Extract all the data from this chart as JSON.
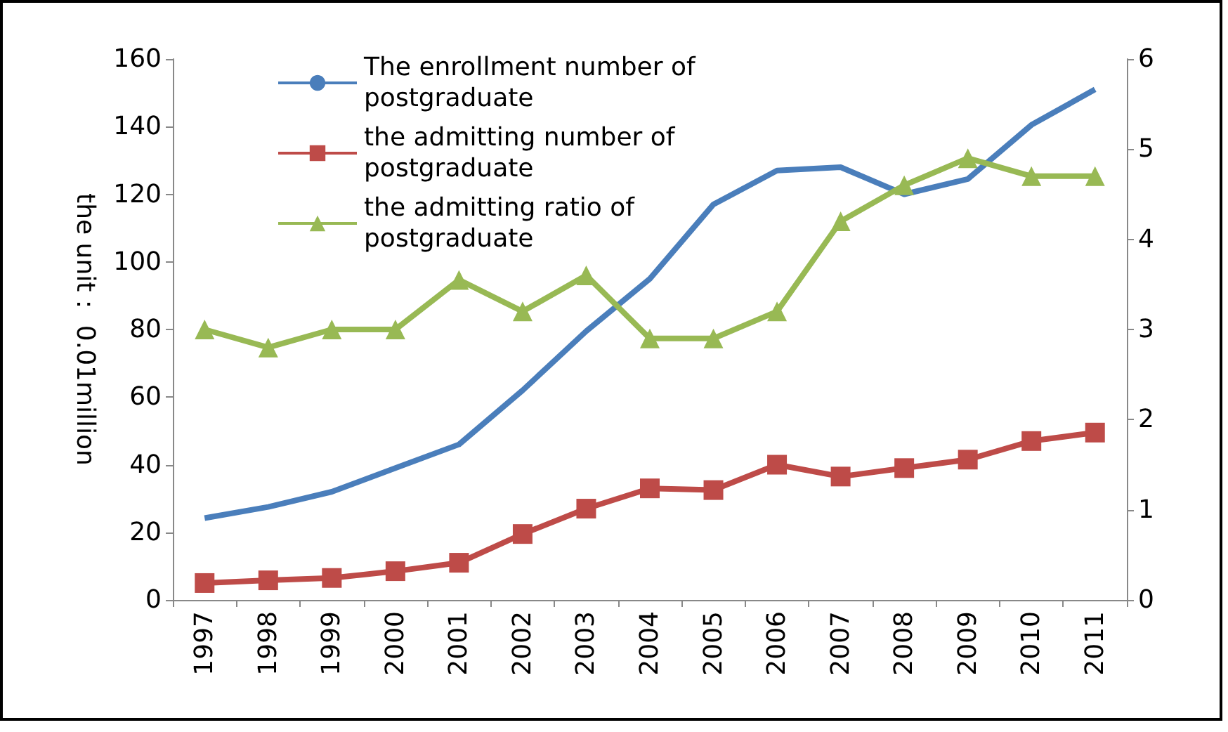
{
  "chart_data": {
    "type": "line",
    "ylabel": "the unit： 0.01million",
    "categories": [
      "1997",
      "1998",
      "1999",
      "2000",
      "2001",
      "2002",
      "2003",
      "2004",
      "2005",
      "2006",
      "2007",
      "2008",
      "2009",
      "2010",
      "2011"
    ],
    "ylim": [
      0,
      160
    ],
    "yticks": [
      0,
      20,
      40,
      60,
      80,
      100,
      120,
      140,
      160
    ],
    "y2lim": [
      0,
      6
    ],
    "y2ticks": [
      0,
      1,
      2,
      3,
      4,
      5,
      6
    ],
    "grid": false,
    "legend": "top left",
    "series": [
      {
        "name": "The enrollment number of postgraduate",
        "color": "#4a7ebb",
        "marker": "none",
        "values": [
          24.2,
          27.5,
          32,
          39,
          46,
          62,
          79.5,
          95,
          117,
          127,
          128,
          120,
          124.5,
          140.5,
          151
        ]
      },
      {
        "name": "the admitting number of postgraduate",
        "color": "#be4b48",
        "marker": "square",
        "values": [
          5,
          5.8,
          6.5,
          8.5,
          11,
          19.5,
          27,
          33,
          32.5,
          40,
          36.5,
          39,
          41.5,
          47,
          49.5
        ]
      },
      {
        "name": "the admitting ratio of postgraduate",
        "color": "#98b954",
        "marker": "triangle",
        "axis": "y2",
        "values": [
          3.0,
          2.8,
          3.0,
          3.0,
          3.55,
          3.2,
          3.6,
          2.9,
          2.9,
          3.2,
          4.2,
          4.6,
          4.9,
          4.7,
          4.7
        ]
      }
    ]
  }
}
